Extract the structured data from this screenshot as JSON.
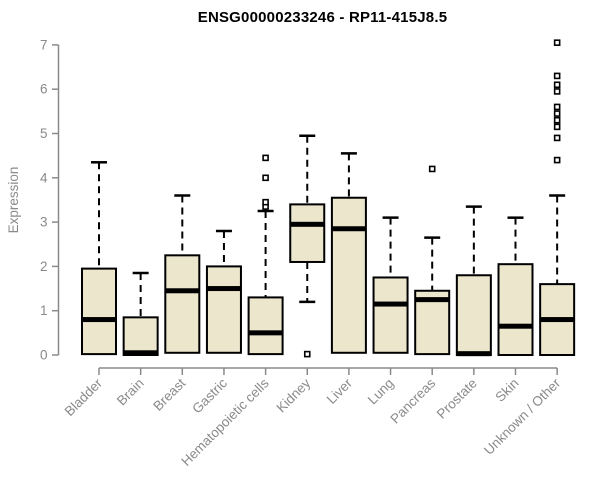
{
  "chart_data": {
    "type": "boxplot",
    "title": "ENSG00000233246 - RP11-415J8.5",
    "xlabel": "",
    "ylabel": "Expression",
    "ylim": [
      0,
      7
    ],
    "yticks": [
      0,
      1,
      2,
      3,
      4,
      5,
      6,
      7
    ],
    "grid": false,
    "legend": false,
    "categories": [
      "Bladder",
      "Brain",
      "Breast",
      "Gastric",
      "Hematopoietic cells",
      "Kidney",
      "Liver",
      "Lung",
      "Pancreas",
      "Prostate",
      "Skin",
      "Unknown / Other"
    ],
    "boxes": [
      {
        "category": "Bladder",
        "whisker_low": 0.02,
        "q1": 0.02,
        "median": 0.8,
        "q3": 1.95,
        "whisker_high": 4.35,
        "outliers": []
      },
      {
        "category": "Brain",
        "whisker_low": 0.0,
        "q1": 0.0,
        "median": 0.05,
        "q3": 0.85,
        "whisker_high": 1.85,
        "outliers": []
      },
      {
        "category": "Breast",
        "whisker_low": 0.05,
        "q1": 0.05,
        "median": 1.45,
        "q3": 2.25,
        "whisker_high": 3.6,
        "outliers": []
      },
      {
        "category": "Gastric",
        "whisker_low": 0.05,
        "q1": 0.05,
        "median": 1.5,
        "q3": 2.0,
        "whisker_high": 2.8,
        "outliers": []
      },
      {
        "category": "Hematopoietic cells",
        "whisker_low": 0.02,
        "q1": 0.02,
        "median": 0.5,
        "q3": 1.3,
        "whisker_high": 3.25,
        "outliers": [
          3.35,
          3.45,
          4.0,
          4.45
        ]
      },
      {
        "category": "Kidney",
        "whisker_low": 1.2,
        "q1": 2.1,
        "median": 2.95,
        "q3": 3.4,
        "whisker_high": 4.95,
        "outliers": [
          0.02
        ]
      },
      {
        "category": "Liver",
        "whisker_low": 0.05,
        "q1": 0.05,
        "median": 2.85,
        "q3": 3.55,
        "whisker_high": 4.55,
        "outliers": []
      },
      {
        "category": "Lung",
        "whisker_low": 0.05,
        "q1": 0.05,
        "median": 1.15,
        "q3": 1.75,
        "whisker_high": 3.1,
        "outliers": []
      },
      {
        "category": "Pancreas",
        "whisker_low": 0.02,
        "q1": 0.02,
        "median": 1.25,
        "q3": 1.45,
        "whisker_high": 2.65,
        "outliers": [
          4.2
        ]
      },
      {
        "category": "Prostate",
        "whisker_low": 0.0,
        "q1": 0.0,
        "median": 0.03,
        "q3": 1.8,
        "whisker_high": 3.35,
        "outliers": []
      },
      {
        "category": "Skin",
        "whisker_low": 0.0,
        "q1": 0.0,
        "median": 0.65,
        "q3": 2.05,
        "whisker_high": 3.1,
        "outliers": []
      },
      {
        "category": "Unknown / Other",
        "whisker_low": 0.0,
        "q1": 0.0,
        "median": 0.8,
        "q3": 1.6,
        "whisker_high": 3.6,
        "outliers": [
          4.4,
          4.9,
          5.15,
          5.3,
          5.45,
          5.6,
          5.95,
          6.1,
          6.3,
          7.05
        ]
      }
    ],
    "style": {
      "box_fill": "#ece6cc",
      "box_border": "#000000",
      "median_color": "#000000",
      "whisker_color": "#000000",
      "outlier_color": "#000000",
      "axis_color": "#8a8a8a",
      "title_color": "#000000"
    }
  }
}
